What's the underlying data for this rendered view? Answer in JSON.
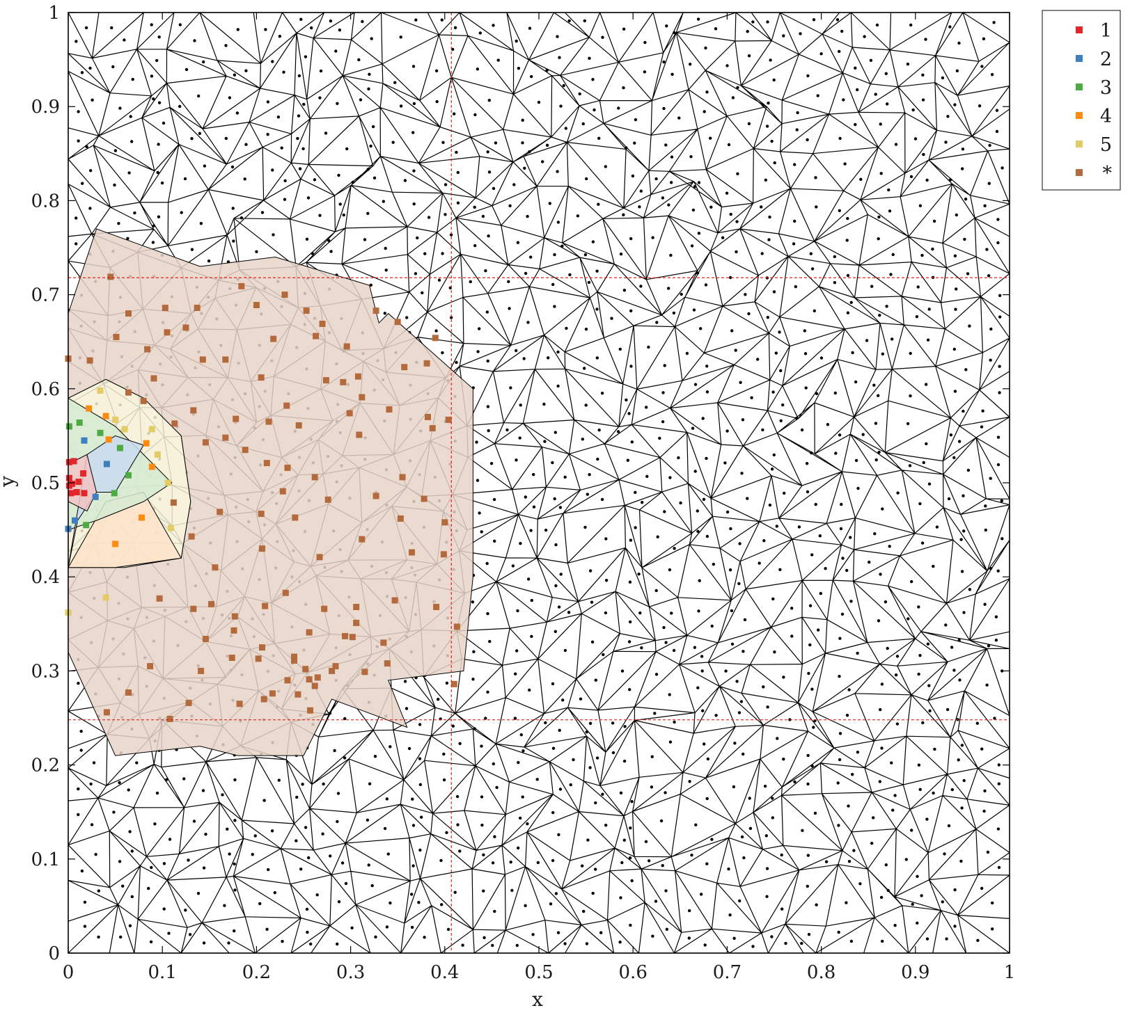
{
  "chart_data": {
    "type": "scatter",
    "xlabel": "x",
    "ylabel": "y",
    "xlim": [
      0,
      1
    ],
    "ylim": [
      0,
      1
    ],
    "x_ticks": [
      "0",
      "0.1",
      "0.2",
      "0.3",
      "0.4",
      "0.5",
      "0.6",
      "0.7",
      "0.8",
      "0.9",
      "1"
    ],
    "y_ticks": [
      "0",
      "0.1",
      "0.2",
      "0.3",
      "0.4",
      "0.5",
      "0.6",
      "0.7",
      "0.8",
      "0.9",
      "1"
    ],
    "grid": false,
    "legend_position": "outside-top-right",
    "reference_lines": {
      "x": [
        0.407
      ],
      "y": [
        0.248,
        0.718
      ]
    },
    "reference_line_color": "#e02020",
    "mesh_color": "#000000",
    "unlabeled_point_color": "#000000",
    "series": [
      {
        "name": "1",
        "color": "#e4262b",
        "fill": "#f2c4c6",
        "region": [
          [
            0,
            0.52
          ],
          [
            0.02,
            0.53
          ],
          [
            0.03,
            0.49
          ],
          [
            0.02,
            0.47
          ],
          [
            0,
            0.48
          ]
        ],
        "points": [
          [
            0.001,
            0.522
          ],
          [
            0.006,
            0.523
          ],
          [
            0.001,
            0.505
          ],
          [
            0.004,
            0.499
          ],
          [
            0.011,
            0.501
          ],
          [
            0.016,
            0.51
          ],
          [
            0.003,
            0.489
          ],
          [
            0.009,
            0.49
          ],
          [
            0.017,
            0.489
          ],
          [
            0.001,
            0.497
          ]
        ]
      },
      {
        "name": "2",
        "color": "#3f7fbf",
        "fill": "#c9dcee",
        "region": [
          [
            0,
            0.41
          ],
          [
            0.02,
            0.53
          ],
          [
            0.05,
            0.55
          ],
          [
            0.08,
            0.54
          ],
          [
            0.05,
            0.49
          ],
          [
            0.03,
            0.49
          ],
          [
            0.01,
            0.46
          ]
        ],
        "points": [
          [
            0.0,
            0.451
          ],
          [
            0.007,
            0.46
          ],
          [
            0.017,
            0.545
          ],
          [
            0.041,
            0.52
          ],
          [
            0.029,
            0.485
          ]
        ]
      },
      {
        "name": "3",
        "color": "#4eaa43",
        "fill": "#d5ebd2",
        "region": [
          [
            0,
            0.59
          ],
          [
            0.05,
            0.56
          ],
          [
            0.08,
            0.53
          ],
          [
            0.11,
            0.5
          ],
          [
            0.08,
            0.48
          ],
          [
            0.03,
            0.46
          ],
          [
            0,
            0.45
          ]
        ],
        "points": [
          [
            0.001,
            0.56
          ],
          [
            0.012,
            0.564
          ],
          [
            0.034,
            0.553
          ],
          [
            0.055,
            0.537
          ],
          [
            0.064,
            0.508
          ],
          [
            0.049,
            0.489
          ],
          [
            0.019,
            0.455
          ]
        ]
      },
      {
        "name": "4",
        "color": "#ff8a10",
        "fill": "#fde3c8",
        "region": [
          [
            0,
            0.41
          ],
          [
            0.04,
            0.48
          ],
          [
            0.08,
            0.49
          ],
          [
            0.12,
            0.42
          ],
          [
            0.05,
            0.41
          ]
        ],
        "points": [
          [
            0.022,
            0.579
          ],
          [
            0.04,
            0.571
          ],
          [
            0.043,
            0.546
          ],
          [
            0.083,
            0.542
          ],
          [
            0.089,
            0.517
          ],
          [
            0.078,
            0.463
          ],
          [
            0.05,
            0.435
          ]
        ]
      },
      {
        "name": "5",
        "color": "#e3cb66",
        "fill": "#f6f0d6",
        "region": [
          [
            0,
            0.32
          ],
          [
            0,
            0.41
          ],
          [
            0.06,
            0.41
          ],
          [
            0.12,
            0.42
          ],
          [
            0.13,
            0.48
          ],
          [
            0.12,
            0.55
          ],
          [
            0.08,
            0.59
          ],
          [
            0.04,
            0.61
          ],
          [
            0,
            0.59
          ]
        ],
        "points": [
          [
            0.034,
            0.598
          ],
          [
            0.05,
            0.567
          ],
          [
            0.06,
            0.557
          ],
          [
            0.089,
            0.557
          ],
          [
            0.095,
            0.53
          ],
          [
            0.106,
            0.5
          ],
          [
            0.109,
            0.452
          ],
          [
            0.04,
            0.378
          ],
          [
            0.0,
            0.362
          ]
        ]
      },
      {
        "name": "*",
        "color": "#b36a3c",
        "fill": "#e8d4c8",
        "region": [
          [
            0,
            0.68
          ],
          [
            0.03,
            0.77
          ],
          [
            0.14,
            0.73
          ],
          [
            0.22,
            0.74
          ],
          [
            0.32,
            0.71
          ],
          [
            0.33,
            0.67
          ],
          [
            0.34,
            0.68
          ],
          [
            0.43,
            0.6
          ],
          [
            0.43,
            0.4
          ],
          [
            0.42,
            0.3
          ],
          [
            0.34,
            0.29
          ],
          [
            0.36,
            0.24
          ],
          [
            0.28,
            0.27
          ],
          [
            0.25,
            0.21
          ],
          [
            0.18,
            0.21
          ],
          [
            0.14,
            0.22
          ],
          [
            0.05,
            0.21
          ],
          [
            0,
            0.32
          ],
          [
            0,
            0.41
          ],
          [
            0.12,
            0.42
          ],
          [
            0.13,
            0.48
          ],
          [
            0.12,
            0.55
          ],
          [
            0.08,
            0.59
          ],
          [
            0.04,
            0.61
          ],
          [
            0,
            0.59
          ]
        ],
        "points": [
          [
            0.045,
            0.719
          ],
          [
            0.064,
            0.68
          ],
          [
            0.051,
            0.655
          ],
          [
            0.0,
            0.632
          ],
          [
            0.023,
            0.63
          ],
          [
            0.103,
            0.686
          ],
          [
            0.105,
            0.66
          ],
          [
            0.125,
            0.665
          ],
          [
            0.143,
            0.631
          ],
          [
            0.137,
            0.686
          ],
          [
            0.184,
            0.709
          ],
          [
            0.2,
            0.689
          ],
          [
            0.218,
            0.653
          ],
          [
            0.23,
            0.7
          ],
          [
            0.253,
            0.683
          ],
          [
            0.27,
            0.669
          ],
          [
            0.263,
            0.656
          ],
          [
            0.296,
            0.645
          ],
          [
            0.327,
            0.683
          ],
          [
            0.35,
            0.671
          ],
          [
            0.39,
            0.654
          ],
          [
            0.308,
            0.613
          ],
          [
            0.381,
            0.627
          ],
          [
            0.357,
            0.623
          ],
          [
            0.312,
            0.591
          ],
          [
            0.292,
            0.607
          ],
          [
            0.274,
            0.609
          ],
          [
            0.205,
            0.612
          ],
          [
            0.167,
            0.631
          ],
          [
            0.084,
            0.642
          ],
          [
            0.091,
            0.611
          ],
          [
            0.064,
            0.596
          ],
          [
            0.08,
            0.587
          ],
          [
            0.113,
            0.563
          ],
          [
            0.133,
            0.577
          ],
          [
            0.167,
            0.548
          ],
          [
            0.178,
            0.568
          ],
          [
            0.213,
            0.565
          ],
          [
            0.232,
            0.582
          ],
          [
            0.245,
            0.561
          ],
          [
            0.299,
            0.574
          ],
          [
            0.341,
            0.578
          ],
          [
            0.387,
            0.558
          ],
          [
            0.404,
            0.567
          ],
          [
            0.382,
            0.57
          ],
          [
            0.146,
            0.543
          ],
          [
            0.188,
            0.535
          ],
          [
            0.211,
            0.521
          ],
          [
            0.233,
            0.516
          ],
          [
            0.262,
            0.506
          ],
          [
            0.309,
            0.551
          ],
          [
            0.355,
            0.506
          ],
          [
            0.378,
            0.483
          ],
          [
            0.4,
            0.458
          ],
          [
            0.353,
            0.462
          ],
          [
            0.327,
            0.486
          ],
          [
            0.276,
            0.482
          ],
          [
            0.241,
            0.463
          ],
          [
            0.228,
            0.491
          ],
          [
            0.205,
            0.467
          ],
          [
            0.161,
            0.469
          ],
          [
            0.112,
            0.479
          ],
          [
            0.131,
            0.443
          ],
          [
            0.156,
            0.41
          ],
          [
            0.206,
            0.43
          ],
          [
            0.267,
            0.421
          ],
          [
            0.312,
            0.44
          ],
          [
            0.365,
            0.426
          ],
          [
            0.399,
            0.424
          ],
          [
            0.391,
            0.368
          ],
          [
            0.347,
            0.375
          ],
          [
            0.306,
            0.368
          ],
          [
            0.272,
            0.366
          ],
          [
            0.231,
            0.383
          ],
          [
            0.209,
            0.369
          ],
          [
            0.177,
            0.358
          ],
          [
            0.152,
            0.371
          ],
          [
            0.097,
            0.377
          ],
          [
            0.133,
            0.366
          ],
          [
            0.146,
            0.334
          ],
          [
            0.176,
            0.343
          ],
          [
            0.206,
            0.325
          ],
          [
            0.24,
            0.315
          ],
          [
            0.256,
            0.341
          ],
          [
            0.284,
            0.305
          ],
          [
            0.294,
            0.337
          ],
          [
            0.306,
            0.351
          ],
          [
            0.335,
            0.33
          ],
          [
            0.302,
            0.336
          ],
          [
            0.315,
            0.299
          ],
          [
            0.28,
            0.3
          ],
          [
            0.262,
            0.284
          ],
          [
            0.24,
            0.311
          ],
          [
            0.233,
            0.29
          ],
          [
            0.217,
            0.276
          ],
          [
            0.202,
            0.313
          ],
          [
            0.174,
            0.314
          ],
          [
            0.141,
            0.3
          ],
          [
            0.087,
            0.305
          ],
          [
            0.064,
            0.277
          ],
          [
            0.041,
            0.256
          ],
          [
            0.108,
            0.249
          ],
          [
            0.128,
            0.266
          ],
          [
            0.182,
            0.265
          ],
          [
            0.208,
            0.27
          ],
          [
            0.244,
            0.275
          ],
          [
            0.257,
            0.258
          ],
          [
            0.265,
            0.293
          ],
          [
            0.256,
            0.291
          ],
          [
            0.252,
            0.302
          ],
          [
            0.339,
            0.308
          ],
          [
            0.413,
            0.347
          ],
          [
            0.41,
            0.286
          ]
        ]
      }
    ]
  }
}
